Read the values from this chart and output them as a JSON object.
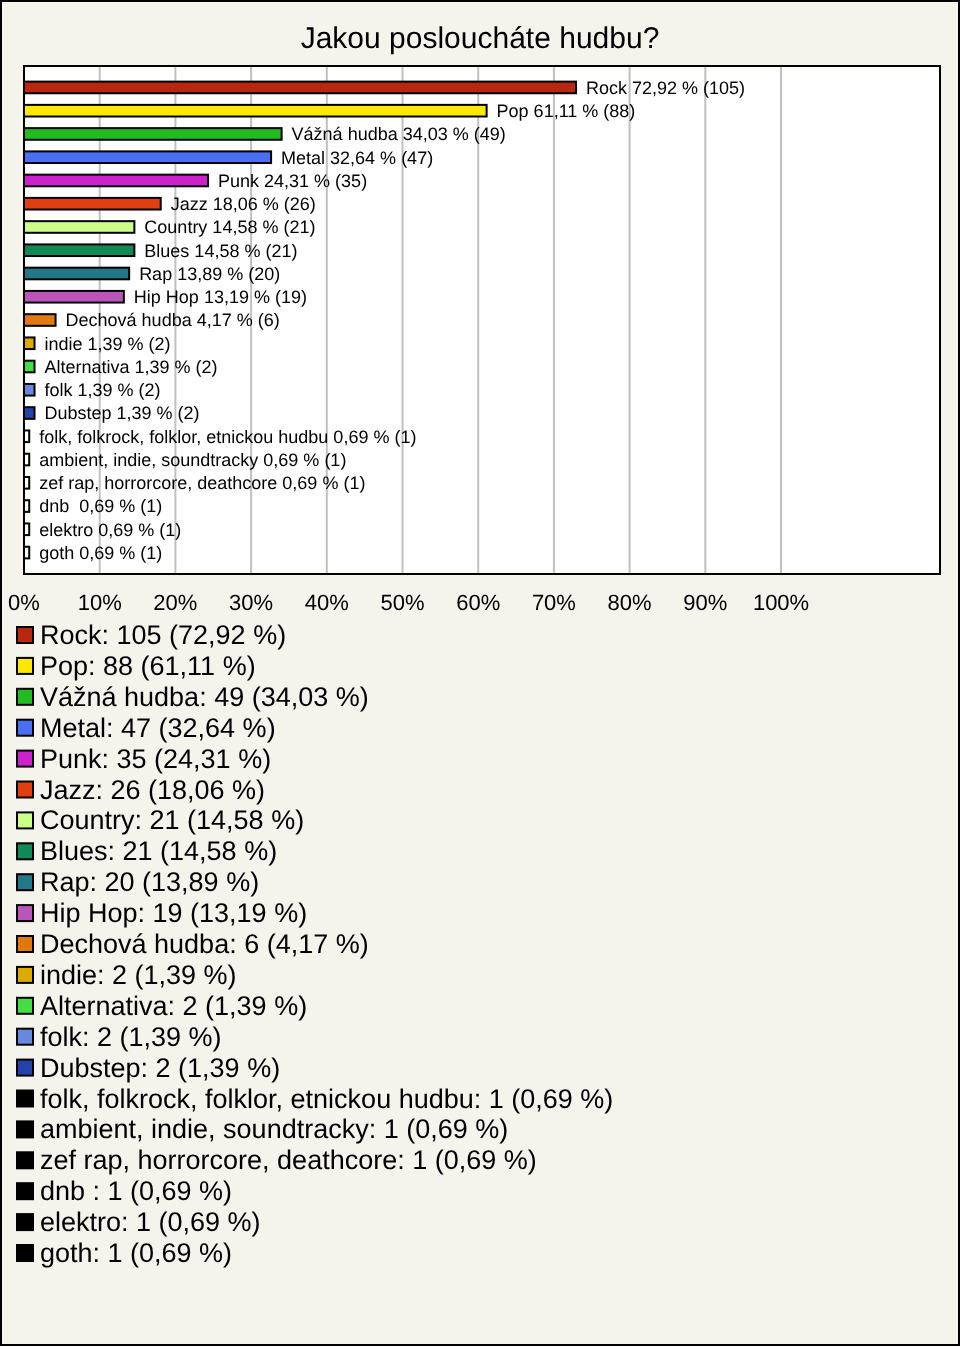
{
  "chart_data": {
    "type": "bar",
    "orientation": "horizontal",
    "title": "Jakou posloucháte hudbu?",
    "categories": [
      null,
      null,
      null,
      null,
      null,
      null,
      null,
      null,
      null,
      null,
      null,
      null,
      null,
      null,
      null,
      null,
      null,
      null,
      null,
      null,
      null
    ],
    "values": [
      72.92,
      61.11,
      34.03,
      32.64,
      24.31,
      18.06,
      14.58,
      14.58,
      13.89,
      13.19,
      4.17,
      1.39,
      1.39,
      1.39,
      1.39,
      0.69,
      0.69,
      0.69,
      0.69,
      0.69,
      0.69
    ],
    "colors": [
      "#b82810",
      "#ffe800",
      "#22bb22",
      "#4a70f0",
      "#cc22cc",
      "#e04010",
      "#ccff88",
      "#118855",
      "#227788",
      "#bb55bb",
      "#e07a10",
      "#ddaa00",
      "#44dd44",
      "#6688dd",
      "#2244aa",
      "#000000",
      "#000000",
      "#000000",
      "#000000",
      "#000000",
      "#000000"
    ],
    "value_labels": [
      "Rock 72,92 % (105)",
      "Pop 61,11 % (88)",
      "Vážná hudba 34,03 % (49)",
      "Metal 32,64 % (47)",
      "Punk 24,31 % (35)",
      "Jazz 18,06 % (26)",
      "Country 14,58 % (21)",
      "Blues 14,58 % (21)",
      "Rap 13,89 % (20)",
      "Hip Hop 13,19 % (19)",
      "Dechová hudba 4,17 % (6)",
      "indie 1,39 % (2)",
      "Alternativa 1,39 % (2)",
      "folk 1,39 % (2)",
      "Dubstep 1,39 % (2)",
      "folk, folkrock, folklor, etnickou hudbu 0,69 % (1)",
      "ambient, indie, soundtracky 0,69 % (1)",
      "zef rap, horrorcore, deathcore 0,69 % (1)",
      "dnb  0,69 % (1)",
      "elektro 0,69 % (1)",
      "goth 0,69 % (1)"
    ],
    "xlim": [
      0,
      121
    ],
    "xticks": [
      {
        "value": 0,
        "label": "0%"
      },
      {
        "value": 10,
        "label": "10%"
      },
      {
        "value": 20,
        "label": "20%"
      },
      {
        "value": 30,
        "label": "30%"
      },
      {
        "value": 40,
        "label": "40%"
      },
      {
        "value": 50,
        "label": "50%"
      },
      {
        "value": 60,
        "label": "60%"
      },
      {
        "value": 70,
        "label": "70%"
      },
      {
        "value": 80,
        "label": "80%"
      },
      {
        "value": 90,
        "label": "90%"
      },
      {
        "value": 100,
        "label": "100%"
      }
    ],
    "grid": "x",
    "tick_labels": "x",
    "annotations": [
      "Rock: 105 (72,92 %)",
      "Pop: 88 (61,11 %)",
      "Vážná hudba: 49 (34,03 %)",
      "Metal: 47 (32,64 %)",
      "Punk: 35 (24,31 %)",
      "Jazz: 26 (18,06 %)",
      "Country: 21 (14,58 %)",
      "Blues: 21 (14,58 %)",
      "Rap: 20 (13,89 %)",
      "Hip Hop: 19 (13,19 %)",
      "Dechová hudba: 6 (4,17 %)",
      "indie: 2 (1,39 %)",
      "Alternativa: 2 (1,39 %)",
      "folk: 2 (1,39 %)",
      "Dubstep: 2 (1,39 %)",
      "folk, folkrock, folklor, etnickou hudbu: 1 (0,69 %)",
      "ambient, indie, soundtracky: 1 (0,69 %)",
      "zef rap, horrorcore, deathcore: 1 (0,69 %)",
      "dnb : 1 (0,69 %)",
      "elektro: 1 (0,69 %)",
      "goth: 1 (0,69 %)"
    ]
  }
}
